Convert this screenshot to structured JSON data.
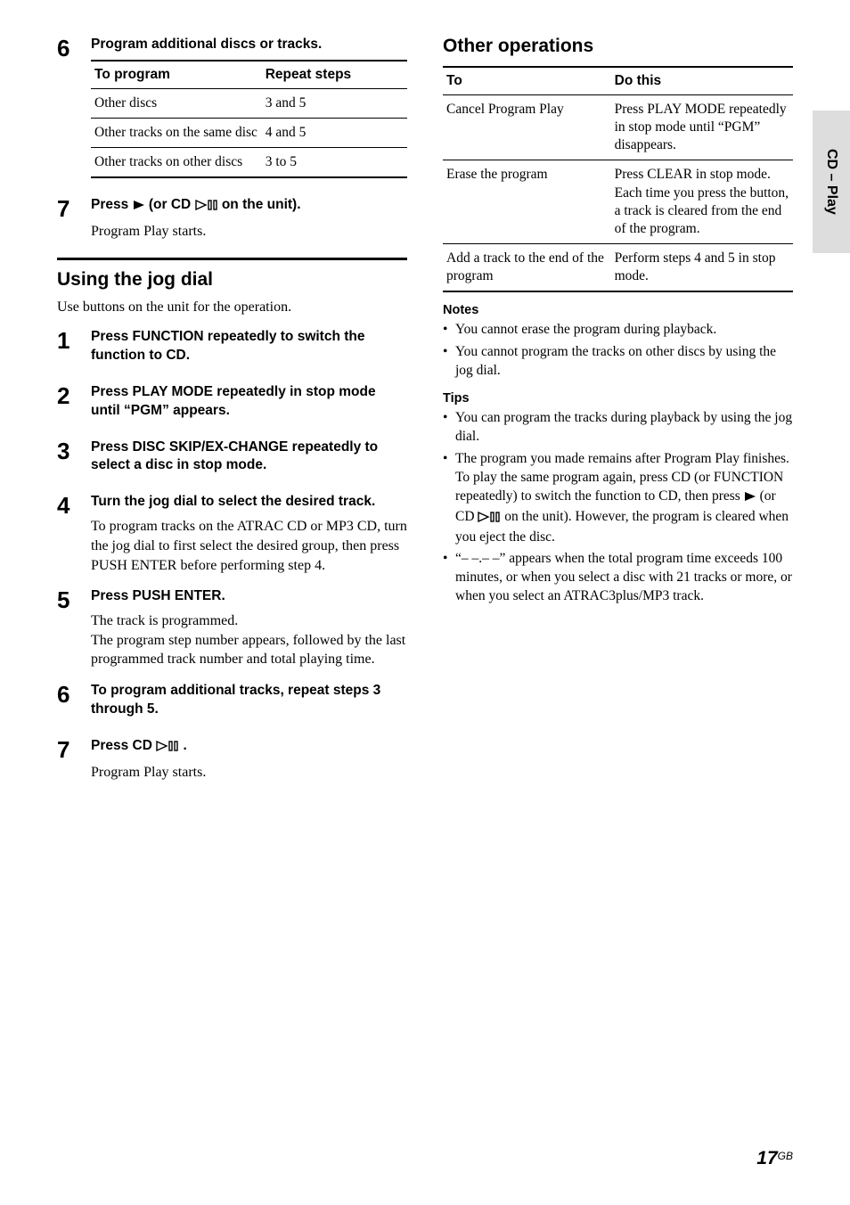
{
  "sideTab": "CD – Play",
  "leftTop": {
    "step6": {
      "num": "6",
      "head": "Program additional discs or tracks.",
      "tableHeaders": [
        "To program",
        "Repeat steps"
      ],
      "rows": [
        [
          "Other discs",
          "3 and 5"
        ],
        [
          "Other tracks on the same disc",
          "4 and 5"
        ],
        [
          "Other tracks on other discs",
          "3 to 5"
        ]
      ]
    },
    "step7": {
      "num": "7",
      "headBefore": "Press ",
      "headMid": " (or CD ",
      "headAfter": " on the unit).",
      "follow": "Program Play starts."
    }
  },
  "jog": {
    "heading": "Using the jog dial",
    "intro": "Use buttons on the unit for the operation.",
    "steps": [
      {
        "num": "1",
        "head": "Press FUNCTION repeatedly to switch the function to CD."
      },
      {
        "num": "2",
        "head": "Press PLAY MODE repeatedly in stop mode until “PGM” appears."
      },
      {
        "num": "3",
        "head": "Press DISC SKIP/EX-CHANGE repeatedly to select a disc in stop mode."
      },
      {
        "num": "4",
        "head": "Turn the jog dial to select the desired track.",
        "follow": "To program tracks on the ATRAC CD or MP3 CD, turn the jog dial to first select the desired group, then press PUSH ENTER before performing step 4."
      },
      {
        "num": "5",
        "head": "Press PUSH ENTER.",
        "follow": "The track is programmed.\nThe program step number appears, followed by the last programmed track number and total playing time."
      },
      {
        "num": "6",
        "head": "To program additional tracks, repeat steps 3 through 5."
      },
      {
        "num": "7",
        "headBefore": "Press CD ",
        "headAfter": ".",
        "follow": "Program Play starts."
      }
    ]
  },
  "other": {
    "heading": "Other operations",
    "tableHeaders": [
      "To",
      "Do this"
    ],
    "rows": [
      [
        "Cancel Program Play",
        "Press PLAY MODE repeatedly in stop mode until “PGM” disappears."
      ],
      [
        "Erase the program",
        "Press CLEAR in stop mode. Each time you press the button, a track is cleared from the end of the program."
      ],
      [
        "Add a track to the end of the program",
        "Perform steps 4 and 5 in stop mode."
      ]
    ],
    "notesHead": "Notes",
    "notes": [
      "You cannot erase the program during playback.",
      "You cannot program the tracks on other discs by using the jog dial."
    ],
    "tipsHead": "Tips",
    "tips": [
      "You can program the tracks during playback by using the jog dial.",
      "__TIP_WITH_ICONS__",
      "“– –.– –” appears when the total program time exceeds 100 minutes, or when you select a disc with 21 tracks or more, or when you select an ATRAC3plus/MP3 track."
    ],
    "tip2": {
      "p1": "The program you made remains after Program Play finishes. To play the same program again, press CD (or FUNCTION repeatedly) to switch the function to CD, then press ",
      "p2": " (or CD ",
      "p3": " on the unit). However, the program is cleared when you eject the disc."
    }
  },
  "footer": {
    "page": "17",
    "suffix": "GB"
  }
}
